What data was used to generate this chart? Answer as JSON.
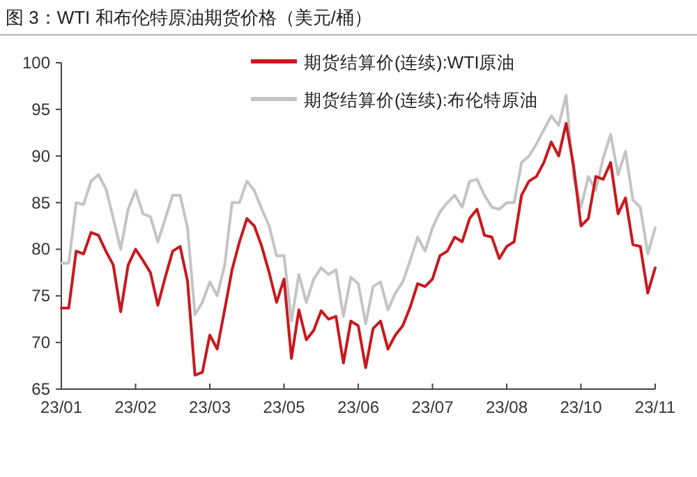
{
  "chart_data": {
    "type": "line",
    "title": "图 3：WTI 和布伦特原油期货价格（美元/桶）",
    "categories": [
      "23/01",
      null,
      null,
      null,
      null,
      null,
      null,
      null,
      null,
      null,
      "23/02",
      null,
      null,
      null,
      null,
      null,
      null,
      null,
      null,
      null,
      "23/03",
      null,
      null,
      null,
      null,
      null,
      null,
      null,
      null,
      null,
      "23/05",
      null,
      null,
      null,
      null,
      null,
      null,
      null,
      null,
      null,
      "23/06",
      null,
      null,
      null,
      null,
      null,
      null,
      null,
      null,
      null,
      "23/07",
      null,
      null,
      null,
      null,
      null,
      null,
      null,
      null,
      null,
      "23/08",
      null,
      null,
      null,
      null,
      null,
      null,
      null,
      null,
      null,
      "23/10",
      null,
      null,
      null,
      null,
      null,
      null,
      null,
      null,
      null,
      "23/11"
    ],
    "ylim": [
      65,
      100
    ],
    "yticks": [
      65,
      70,
      75,
      80,
      85,
      90,
      95,
      100
    ],
    "grid": false,
    "legend": "top right",
    "line_style": "solid",
    "marker": "none",
    "series": [
      {
        "name": "期货结算价(连续):WTI原油",
        "color": "#c8191e",
        "values": [
          73.7,
          73.7,
          79.8,
          79.5,
          81.8,
          81.5,
          79.8,
          78.3,
          73.3,
          78.3,
          80,
          78.8,
          77.5,
          74,
          77,
          79.8,
          80.3,
          76.6,
          66.5,
          66.8,
          70.8,
          69.3,
          73.5,
          77.8,
          80.8,
          83.3,
          82.5,
          80.3,
          77.5,
          74.3,
          76.8,
          68.3,
          73.5,
          70.3,
          71.3,
          73.4,
          72.5,
          72.8,
          67.8,
          72.3,
          71.8,
          67.3,
          71.5,
          72.3,
          69.3,
          70.8,
          71.8,
          73.8,
          76.3,
          76,
          76.8,
          79.3,
          79.8,
          81.3,
          80.8,
          83.3,
          84.3,
          81.5,
          81.3,
          79,
          80.3,
          80.8,
          85.8,
          87.3,
          87.8,
          89.3,
          91.5,
          90,
          93.5,
          89,
          82.5,
          83.3,
          87.8,
          87.5,
          89.3,
          83.8,
          85.5,
          80.5,
          80.3,
          75.3,
          78
        ]
      },
      {
        "name": "期货结算价(连续):布伦特原油",
        "color": "#c4c4c4",
        "values": [
          78.5,
          78.5,
          85,
          84.8,
          87.3,
          88,
          86.5,
          83.3,
          80,
          84.3,
          86.3,
          83.8,
          83.5,
          80.8,
          83.3,
          85.8,
          85.8,
          82.3,
          73,
          74.3,
          76.5,
          75,
          78.3,
          85,
          85,
          87.3,
          86.3,
          84.3,
          82.5,
          79.3,
          79.3,
          72.3,
          77.3,
          74.3,
          76.8,
          78,
          77.3,
          77.8,
          72.8,
          77,
          76.3,
          72,
          76,
          76.5,
          73.5,
          75.3,
          76.5,
          78.8,
          81.3,
          79.8,
          82.3,
          84,
          85,
          85.8,
          84.5,
          87.3,
          87.5,
          85.8,
          84.5,
          84.3,
          85,
          85,
          89.3,
          90,
          91.3,
          92.8,
          94.3,
          93.3,
          96.5,
          87.8,
          84.5,
          87.8,
          86.3,
          89.8,
          92.3,
          88,
          90.5,
          85.3,
          84.5,
          79.5,
          82.3
        ]
      }
    ]
  }
}
